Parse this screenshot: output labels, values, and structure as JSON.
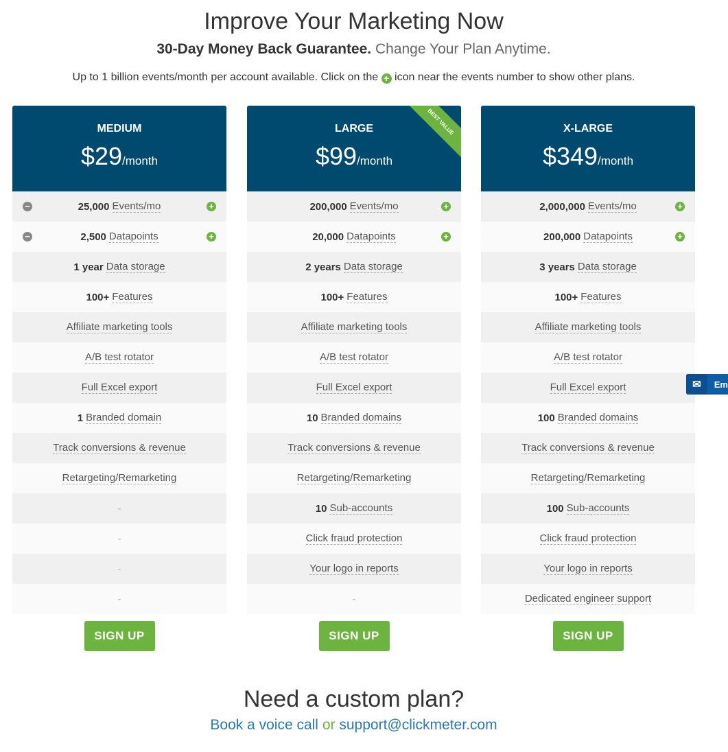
{
  "header": {
    "title": "Improve Your Marketing Now",
    "guarantee": "30-Day Money Back Guarantee.",
    "change": "Change Your Plan Anytime.",
    "info_before": "Up to 1 billion events/month per account available. Click on the",
    "info_after": "icon near the events number to show other plans."
  },
  "colors": {
    "header_bg": "#004a70",
    "accent": "#6db33f",
    "link": "#2a7ab0"
  },
  "plans": [
    {
      "name": "MEDIUM",
      "price": "$29",
      "period": "/month",
      "badge": "",
      "signup": "SIGN UP",
      "rows": [
        {
          "b": "25,000",
          "t": "Events/mo",
          "minus": true,
          "plus": true
        },
        {
          "b": "2,500",
          "t": "Datapoints",
          "minus": true,
          "plus": true
        },
        {
          "b": "1 year",
          "t": "Data storage"
        },
        {
          "b": "100+",
          "t": "Features"
        },
        {
          "b": "",
          "t": "Affiliate marketing tools"
        },
        {
          "b": "",
          "t": "A/B test rotator"
        },
        {
          "b": "",
          "t": "Full Excel export"
        },
        {
          "b": "1",
          "t": "Branded domain"
        },
        {
          "b": "",
          "t": "Track conversions & revenue"
        },
        {
          "b": "",
          "t": "Retargeting/Remarketing"
        },
        {
          "dash": "-"
        },
        {
          "dash": "-"
        },
        {
          "dash": "-"
        },
        {
          "dash": "-"
        }
      ]
    },
    {
      "name": "LARGE",
      "price": "$99",
      "period": "/month",
      "badge": "BEST VALUE",
      "signup": "SIGN UP",
      "rows": [
        {
          "b": "200,000",
          "t": "Events/mo",
          "plus": true
        },
        {
          "b": "20,000",
          "t": "Datapoints",
          "plus": true
        },
        {
          "b": "2 years",
          "t": "Data storage"
        },
        {
          "b": "100+",
          "t": "Features"
        },
        {
          "b": "",
          "t": "Affiliate marketing tools"
        },
        {
          "b": "",
          "t": "A/B test rotator"
        },
        {
          "b": "",
          "t": "Full Excel export"
        },
        {
          "b": "10",
          "t": "Branded domains"
        },
        {
          "b": "",
          "t": "Track conversions & revenue"
        },
        {
          "b": "",
          "t": "Retargeting/Remarketing"
        },
        {
          "b": "10",
          "t": "Sub-accounts"
        },
        {
          "b": "",
          "t": "Click fraud protection"
        },
        {
          "b": "",
          "t": "Your logo in reports"
        },
        {
          "dash": "-"
        }
      ]
    },
    {
      "name": "X-LARGE",
      "price": "$349",
      "period": "/month",
      "badge": "",
      "signup": "SIGN UP",
      "rows": [
        {
          "b": "2,000,000",
          "t": "Events/mo",
          "plus": true
        },
        {
          "b": "200,000",
          "t": "Datapoints",
          "plus": true
        },
        {
          "b": "3 years",
          "t": "Data storage"
        },
        {
          "b": "100+",
          "t": "Features"
        },
        {
          "b": "",
          "t": "Affiliate marketing tools"
        },
        {
          "b": "",
          "t": "A/B test rotator"
        },
        {
          "b": "",
          "t": "Full Excel export"
        },
        {
          "b": "100",
          "t": "Branded domains"
        },
        {
          "b": "",
          "t": "Track conversions & revenue"
        },
        {
          "b": "",
          "t": "Retargeting/Remarketing"
        },
        {
          "b": "100",
          "t": "Sub-accounts"
        },
        {
          "b": "",
          "t": "Click fraud protection"
        },
        {
          "b": "",
          "t": "Your logo in reports"
        },
        {
          "b": "",
          "t": "Dedicated engineer support"
        }
      ]
    }
  ],
  "footer": {
    "custom": "Need a custom plan?",
    "call": "Book a voice call",
    "or": "or",
    "email": "support@clickmeter.com"
  },
  "email_tab": {
    "label": "Em"
  }
}
